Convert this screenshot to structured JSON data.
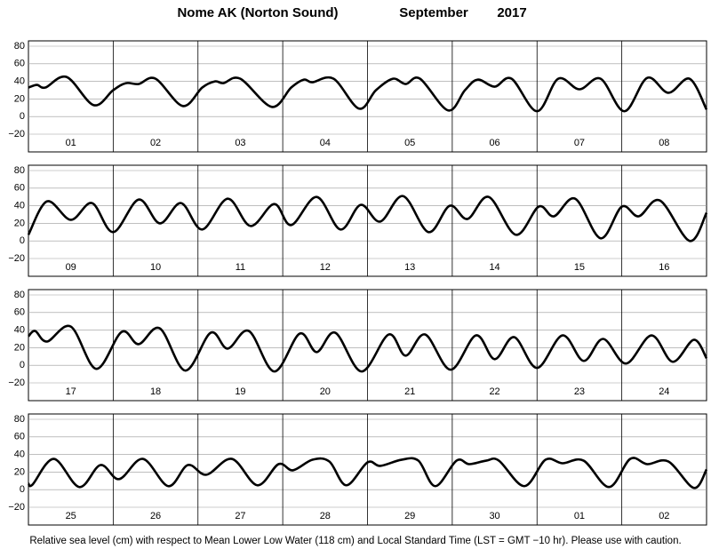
{
  "title_left": "Nome AK (Norton Sound)",
  "title_month": "September",
  "title_year": "2017",
  "footer": "Relative sea level (cm) with respect to Mean Lower Low Water (118 cm) and Local Standard Time (LST = GMT −10 hr). Please use with caution.",
  "chart_data": [
    {
      "type": "line",
      "color": "#000",
      "ylim": [
        -20,
        80
      ],
      "yticks": [
        {
          "value": -20,
          "label": "−20"
        },
        0,
        20,
        40,
        60,
        80
      ],
      "grid": true,
      "categories": [
        "01",
        "02",
        "03",
        "04",
        "05",
        "06",
        "07",
        "08"
      ],
      "xlim": [
        0,
        8
      ],
      "x": [
        0,
        0.1,
        0.2,
        0.45,
        0.77,
        1.0,
        1.15,
        1.3,
        1.5,
        1.82,
        2.05,
        2.2,
        2.3,
        2.5,
        2.87,
        3.1,
        3.25,
        3.35,
        3.6,
        3.9,
        4.1,
        4.3,
        4.45,
        4.62,
        4.95,
        5.15,
        5.3,
        5.5,
        5.7,
        6.0,
        6.25,
        6.5,
        6.75,
        7.03,
        7.3,
        7.55,
        7.8,
        8.0
      ],
      "values": [
        33,
        36,
        33,
        45,
        13,
        30,
        38,
        37,
        43,
        12,
        33,
        40,
        38,
        43,
        11,
        33,
        42,
        39,
        43,
        9,
        30,
        43,
        37,
        43,
        7,
        30,
        42,
        34,
        43,
        6,
        43,
        31,
        43,
        6,
        44,
        27,
        43,
        8
      ]
    },
    {
      "type": "line",
      "color": "#000",
      "ylim": [
        -20,
        80
      ],
      "yticks": [
        {
          "value": -20,
          "label": "−20"
        },
        0,
        20,
        40,
        60,
        80
      ],
      "grid": true,
      "categories": [
        "09",
        "10",
        "11",
        "12",
        "13",
        "14",
        "15",
        "16"
      ],
      "xlim": [
        0,
        8
      ],
      "x": [
        0,
        0.22,
        0.5,
        0.75,
        1.0,
        1.3,
        1.55,
        1.8,
        2.05,
        2.35,
        2.62,
        2.9,
        3.1,
        3.4,
        3.68,
        3.92,
        4.15,
        4.42,
        4.72,
        4.97,
        5.18,
        5.43,
        5.75,
        6.02,
        6.2,
        6.45,
        6.75,
        7.0,
        7.2,
        7.45,
        7.8,
        8.0
      ],
      "values": [
        7,
        45,
        24,
        43,
        10,
        47,
        20,
        43,
        13,
        48,
        17,
        42,
        18,
        50,
        13,
        41,
        22,
        51,
        10,
        40,
        25,
        50,
        7,
        39,
        28,
        48,
        3,
        39,
        28,
        46,
        0,
        32
      ]
    },
    {
      "type": "line",
      "color": "#000",
      "ylim": [
        -20,
        80
      ],
      "yticks": [
        {
          "value": -20,
          "label": "−20"
        },
        0,
        20,
        40,
        60,
        80
      ],
      "grid": true,
      "categories": [
        "17",
        "18",
        "19",
        "20",
        "21",
        "22",
        "23",
        "24"
      ],
      "xlim": [
        0,
        8
      ],
      "x": [
        0,
        0.08,
        0.22,
        0.5,
        0.8,
        1.1,
        1.3,
        1.55,
        1.85,
        2.15,
        2.35,
        2.6,
        2.9,
        3.2,
        3.4,
        3.62,
        3.93,
        4.25,
        4.45,
        4.68,
        4.98,
        5.28,
        5.5,
        5.73,
        6.0,
        6.3,
        6.55,
        6.78,
        7.05,
        7.35,
        7.6,
        7.85,
        8.0
      ],
      "values": [
        33,
        39,
        27,
        44,
        -4,
        38,
        24,
        42,
        -6,
        37,
        19,
        39,
        -7,
        36,
        15,
        37,
        -7,
        35,
        11,
        35,
        -5,
        34,
        7,
        32,
        -3,
        34,
        5,
        30,
        2,
        34,
        4,
        29,
        8
      ]
    },
    {
      "type": "line",
      "color": "#000",
      "ylim": [
        -20,
        80
      ],
      "yticks": [
        {
          "value": -20,
          "label": "−20"
        },
        0,
        20,
        40,
        60,
        80
      ],
      "grid": true,
      "categories": [
        "25",
        "26",
        "27",
        "28",
        "29",
        "30",
        "01",
        "02"
      ],
      "xlim": [
        0,
        8
      ],
      "x": [
        0,
        0.05,
        0.3,
        0.6,
        0.85,
        1.07,
        1.35,
        1.65,
        1.88,
        2.1,
        2.4,
        2.7,
        2.95,
        3.12,
        3.35,
        3.55,
        3.75,
        4.0,
        4.15,
        4.4,
        4.6,
        4.8,
        5.05,
        5.2,
        5.4,
        5.55,
        5.85,
        6.1,
        6.3,
        6.55,
        6.85,
        7.1,
        7.3,
        7.55,
        7.85,
        8.0
      ],
      "values": [
        7,
        6,
        35,
        3,
        28,
        12,
        35,
        4,
        28,
        17,
        35,
        5,
        29,
        22,
        34,
        32,
        5,
        31,
        27,
        34,
        33,
        4,
        33,
        29,
        33,
        33,
        4,
        34,
        30,
        33,
        3,
        35,
        29,
        32,
        2,
        23
      ]
    }
  ]
}
